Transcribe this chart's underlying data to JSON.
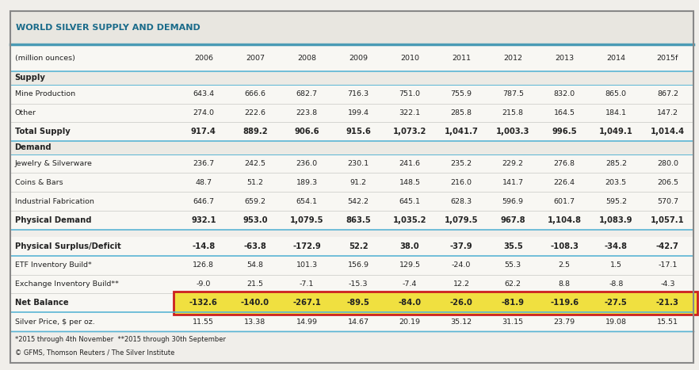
{
  "title": "WORLD SILVER SUPPLY AND DEMAND",
  "title_color": "#1a6b8a",
  "bg_color": "#f0eeea",
  "outer_border_color": "#888888",
  "header_line_color": "#4a9bb5",
  "columns": [
    "(million ounces)",
    "2006",
    "2007",
    "2008",
    "2009",
    "2010",
    "2011",
    "2012",
    "2013",
    "2014",
    "2015f"
  ],
  "rows": [
    {
      "label": "Supply",
      "bold": true,
      "is_section": true,
      "is_spacer": false,
      "is_netbalance": false,
      "values": [
        "",
        "",
        "",
        "",
        "",
        "",
        "",
        "",
        "",
        ""
      ]
    },
    {
      "label": "Mine Production",
      "bold": false,
      "is_section": false,
      "is_spacer": false,
      "is_netbalance": false,
      "values": [
        "643.4",
        "666.6",
        "682.7",
        "716.3",
        "751.0",
        "755.9",
        "787.5",
        "832.0",
        "865.0",
        "867.2"
      ]
    },
    {
      "label": "Other",
      "bold": false,
      "is_section": false,
      "is_spacer": false,
      "is_netbalance": false,
      "values": [
        "274.0",
        "222.6",
        "223.8",
        "199.4",
        "322.1",
        "285.8",
        "215.8",
        "164.5",
        "184.1",
        "147.2"
      ]
    },
    {
      "label": "Total Supply",
      "bold": true,
      "is_section": false,
      "is_spacer": false,
      "is_netbalance": false,
      "values": [
        "917.4",
        "889.2",
        "906.6",
        "915.6",
        "1,073.2",
        "1,041.7",
        "1,003.3",
        "996.5",
        "1,049.1",
        "1,014.4"
      ]
    },
    {
      "label": "Demand",
      "bold": true,
      "is_section": true,
      "is_spacer": false,
      "is_netbalance": false,
      "values": [
        "",
        "",
        "",
        "",
        "",
        "",
        "",
        "",
        "",
        ""
      ]
    },
    {
      "label": "Jewelry & Silverware",
      "bold": false,
      "is_section": false,
      "is_spacer": false,
      "is_netbalance": false,
      "values": [
        "236.7",
        "242.5",
        "236.0",
        "230.1",
        "241.6",
        "235.2",
        "229.2",
        "276.8",
        "285.2",
        "280.0"
      ]
    },
    {
      "label": "Coins & Bars",
      "bold": false,
      "is_section": false,
      "is_spacer": false,
      "is_netbalance": false,
      "values": [
        "48.7",
        "51.2",
        "189.3",
        "91.2",
        "148.5",
        "216.0",
        "141.7",
        "226.4",
        "203.5",
        "206.5"
      ]
    },
    {
      "label": "Industrial Fabrication",
      "bold": false,
      "is_section": false,
      "is_spacer": false,
      "is_netbalance": false,
      "values": [
        "646.7",
        "659.2",
        "654.1",
        "542.2",
        "645.1",
        "628.3",
        "596.9",
        "601.7",
        "595.2",
        "570.7"
      ]
    },
    {
      "label": "Physical Demand",
      "bold": true,
      "is_section": false,
      "is_spacer": false,
      "is_netbalance": false,
      "values": [
        "932.1",
        "953.0",
        "1,079.5",
        "863.5",
        "1,035.2",
        "1,079.5",
        "967.8",
        "1,104.8",
        "1,083.9",
        "1,057.1"
      ]
    },
    {
      "label": "",
      "bold": false,
      "is_section": false,
      "is_spacer": true,
      "is_netbalance": false,
      "values": [
        "",
        "",
        "",
        "",
        "",
        "",
        "",
        "",
        "",
        ""
      ]
    },
    {
      "label": "Physical Surplus/Deficit",
      "bold": true,
      "is_section": false,
      "is_spacer": false,
      "is_netbalance": false,
      "values": [
        "-14.8",
        "-63.8",
        "-172.9",
        "52.2",
        "38.0",
        "-37.9",
        "35.5",
        "-108.3",
        "-34.8",
        "-42.7"
      ]
    },
    {
      "label": "ETF Inventory Build*",
      "bold": false,
      "is_section": false,
      "is_spacer": false,
      "is_netbalance": false,
      "values": [
        "126.8",
        "54.8",
        "101.3",
        "156.9",
        "129.5",
        "-24.0",
        "55.3",
        "2.5",
        "1.5",
        "-17.1"
      ]
    },
    {
      "label": "Exchange Inventory Build**",
      "bold": false,
      "is_section": false,
      "is_spacer": false,
      "is_netbalance": false,
      "values": [
        "-9.0",
        "21.5",
        "-7.1",
        "-15.3",
        "-7.4",
        "12.2",
        "62.2",
        "8.8",
        "-8.8",
        "-4.3"
      ]
    },
    {
      "label": "Net Balance",
      "bold": true,
      "is_section": false,
      "is_spacer": false,
      "is_netbalance": true,
      "values": [
        "-132.6",
        "-140.0",
        "-267.1",
        "-89.5",
        "-84.0",
        "-26.0",
        "-81.9",
        "-119.6",
        "-27.5",
        "-21.3"
      ]
    },
    {
      "label": "Silver Price, $ per oz.",
      "bold": false,
      "is_section": false,
      "is_spacer": false,
      "is_netbalance": false,
      "values": [
        "11.55",
        "13.38",
        "14.99",
        "14.67",
        "20.19",
        "35.12",
        "31.15",
        "23.79",
        "19.08",
        "15.51"
      ]
    }
  ],
  "footnotes": [
    "*2015 through 4th November  **2015 through 30th September",
    "© GFMS, Thomson Reuters / The Silver Institute"
  ],
  "net_balance_highlight": "#f0e040",
  "net_balance_border": "#cc2020",
  "section_line_color": "#5ab4d4",
  "text_color": "#222222",
  "row_bg": "#f8f7f3",
  "row_bg_section": "#eceae4"
}
